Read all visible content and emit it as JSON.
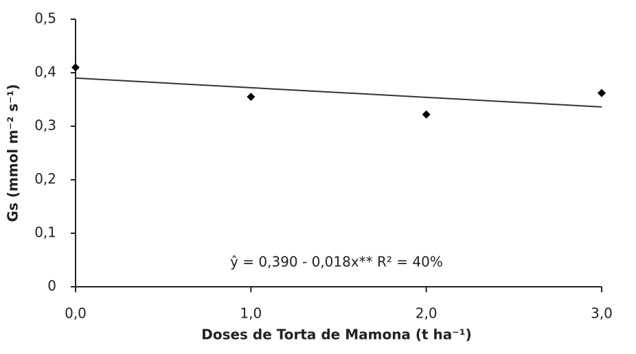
{
  "chart_data": {
    "type": "scatter",
    "y_label": "Gs (mmol m⁻² s⁻¹)",
    "x_label": "Doses de Torta de Mamona (t ha⁻¹)",
    "annotation": "ŷ = 0,390 - 0,018x**  R² = 40%",
    "x": [
      0,
      1,
      2,
      3
    ],
    "values": [
      0.41,
      0.355,
      0.322,
      0.362
    ],
    "color": "#000000",
    "trend": {
      "x": [
        0,
        3
      ],
      "values": [
        0.39,
        0.336
      ],
      "color": "#333333"
    },
    "xlim": [
      0,
      3
    ],
    "ylim": [
      0,
      0.5
    ],
    "xticks": [
      {
        "value": 0,
        "label": "0,0"
      },
      {
        "value": 1,
        "label": "1,0"
      },
      {
        "value": 2,
        "label": "2,0"
      },
      {
        "value": 3,
        "label": "3,0"
      }
    ],
    "yticks": [
      0,
      {
        "value": 0.1,
        "label": "0,1"
      },
      {
        "value": 0.2,
        "label": "0,2"
      },
      {
        "value": 0.3,
        "label": "0,3"
      },
      {
        "value": 0.4,
        "label": "0,4"
      },
      {
        "value": 0.5,
        "label": "0,5"
      }
    ],
    "grid": false
  }
}
